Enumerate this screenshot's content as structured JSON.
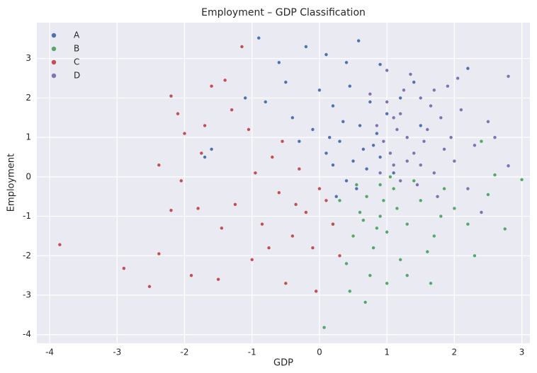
{
  "chart_data": {
    "type": "scatter",
    "title": "Employment – GDP Classification",
    "x_label": "GDP",
    "y_label": "Employment",
    "xlim": [
      -4.19,
      3.12
    ],
    "ylim": [
      -4.22,
      3.91
    ],
    "xticks": [
      -4,
      -3,
      -2,
      -1,
      0,
      1,
      2,
      3
    ],
    "yticks": [
      -4,
      -3,
      -2,
      -1,
      0,
      1,
      2,
      3
    ],
    "grid": true,
    "legend": "upper left",
    "series": [
      {
        "name": "A",
        "color": "#4c72b0",
        "x": [
          -0.9,
          -1.7,
          -1.1,
          -0.6,
          -0.2,
          0.1,
          0.58,
          0.4,
          0.9,
          2.2,
          -0.4,
          -0.1,
          0.2,
          0.3,
          0.5,
          0.6,
          0.7,
          0.8,
          0.4,
          0.2,
          0.9,
          1.0,
          0.35,
          0.55,
          1.2,
          0.1,
          -0.3,
          0.75,
          1.4,
          0.65,
          -0.8,
          -1.6,
          1.1,
          0.45,
          -0.5,
          0.0,
          0.85,
          0.25,
          1.5,
          0.15
        ],
        "values": [
          3.52,
          0.5,
          2.0,
          2.9,
          3.3,
          3.1,
          3.45,
          2.9,
          2.85,
          2.75,
          1.5,
          1.2,
          1.8,
          0.9,
          0.4,
          1.3,
          0.2,
          0.8,
          -0.1,
          0.3,
          0.5,
          1.6,
          1.4,
          -0.3,
          2.0,
          0.6,
          0.9,
          1.9,
          2.4,
          0.7,
          1.9,
          0.7,
          0.1,
          2.3,
          2.4,
          2.2,
          1.1,
          -0.5,
          1.3,
          1.0
        ]
      },
      {
        "name": "B",
        "color": "#55a868",
        "x": [
          0.07,
          0.68,
          3.0,
          2.75,
          2.5,
          1.65,
          1.0,
          0.5,
          0.7,
          0.9,
          1.1,
          0.8,
          1.3,
          0.6,
          1.5,
          0.4,
          1.2,
          0.9,
          1.7,
          2.0,
          0.3,
          1.0,
          0.75,
          1.4,
          2.2,
          1.85,
          0.55,
          1.15,
          0.2,
          2.4,
          2.6,
          1.6,
          0.95,
          0.45,
          1.3,
          0.85,
          1.05,
          1.8,
          0.65,
          2.3
        ],
        "values": [
          -3.82,
          -3.18,
          -0.07,
          -1.32,
          -0.45,
          -2.7,
          -2.7,
          -1.5,
          -0.5,
          -1.0,
          -0.3,
          -1.8,
          -1.2,
          -0.9,
          -0.6,
          -2.2,
          -2.1,
          -0.2,
          -1.5,
          -0.8,
          -0.6,
          -1.4,
          -2.5,
          -0.1,
          -1.2,
          -0.3,
          -0.2,
          -0.8,
          -1.2,
          0.9,
          0.05,
          -1.9,
          -0.6,
          -2.9,
          -2.5,
          -1.3,
          0.0,
          -1.0,
          -1.1,
          -2.0
        ]
      },
      {
        "name": "C",
        "color": "#c44e52",
        "x": [
          -3.85,
          -2.9,
          -2.52,
          -2.38,
          -2.38,
          -2.2,
          -2.1,
          -2.05,
          -2.0,
          -1.9,
          -1.8,
          -1.7,
          -1.6,
          -1.5,
          -1.4,
          -1.3,
          -1.25,
          -1.15,
          -1.05,
          -1.0,
          -0.95,
          -0.85,
          -0.7,
          -0.6,
          -0.5,
          -0.4,
          -0.3,
          -0.2,
          -0.1,
          0.0,
          -0.05,
          0.1,
          0.2,
          0.3,
          -0.75,
          -1.45,
          -0.55,
          -0.35,
          -2.2,
          -1.75
        ],
        "values": [
          -1.72,
          -2.32,
          -2.78,
          -1.95,
          0.3,
          2.05,
          1.6,
          -0.1,
          1.1,
          -2.5,
          -0.8,
          1.3,
          2.3,
          -2.6,
          2.45,
          1.7,
          -0.7,
          3.3,
          1.2,
          -2.1,
          0.1,
          -1.2,
          0.5,
          -0.4,
          -2.7,
          -1.5,
          0.2,
          -0.9,
          -1.8,
          -0.3,
          -2.9,
          -0.6,
          -1.2,
          -2.0,
          -1.8,
          -1.3,
          0.9,
          -0.7,
          -0.85,
          0.6
        ]
      },
      {
        "name": "D",
        "color": "#8172b2",
        "x": [
          2.8,
          2.8,
          2.5,
          2.3,
          2.1,
          1.9,
          1.7,
          1.6,
          1.5,
          1.4,
          1.3,
          1.2,
          1.1,
          1.0,
          0.95,
          1.75,
          2.0,
          1.25,
          1.45,
          0.85,
          1.05,
          1.55,
          1.8,
          2.2,
          1.35,
          0.9,
          1.65,
          1.15,
          2.4,
          1.95,
          0.75,
          1.2,
          2.05,
          1.5,
          1.85,
          1.0,
          2.6,
          1.3,
          1.7,
          1.1
        ],
        "values": [
          2.55,
          0.28,
          1.4,
          0.8,
          1.7,
          2.3,
          0.1,
          1.2,
          2.0,
          0.6,
          1.0,
          1.6,
          0.3,
          2.7,
          0.9,
          -0.5,
          0.4,
          2.2,
          -0.2,
          1.3,
          0.6,
          0.9,
          1.5,
          -0.3,
          2.6,
          0.1,
          1.8,
          1.2,
          -0.9,
          1.0,
          2.1,
          -0.1,
          2.5,
          0.3,
          0.7,
          1.9,
          1.0,
          0.4,
          2.2,
          1.5
        ]
      }
    ]
  }
}
